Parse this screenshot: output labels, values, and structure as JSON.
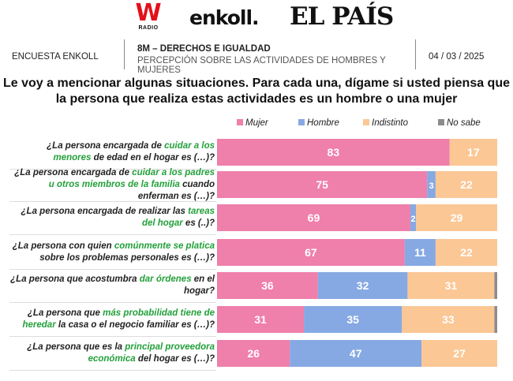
{
  "logos": {
    "w": "W",
    "radio": "RADIO",
    "enkoll": "enkoll.",
    "elpais": "EL PAÍS"
  },
  "header": {
    "survey": "ENCUESTA ENKOLL",
    "title": "8M – DERECHOS E IGUALDAD",
    "subtitle": "PERCEPCIÓN SOBRE LAS ACTIVIDADES DE HOMBRES Y MUJERES",
    "date": "04 / 03 / 2025"
  },
  "question": "Le voy a mencionar algunas situaciones. Para cada una, dígame si usted piensa que la persona que realiza estas actividades es un hombre o una mujer",
  "chart_data": {
    "type": "bar",
    "orientation": "horizontal",
    "stacked": true,
    "xlim": [
      0,
      100
    ],
    "legend_position": "top-right",
    "series": [
      {
        "name": "Mujer",
        "color": "#ef7fab",
        "values": [
          83,
          75,
          69,
          67,
          36,
          31,
          26
        ]
      },
      {
        "name": "Hombre",
        "color": "#86a9e3",
        "values": [
          0,
          3,
          2,
          11,
          32,
          35,
          47
        ]
      },
      {
        "name": "Indistinto",
        "color": "#fbc795",
        "values": [
          17,
          22,
          29,
          22,
          31,
          33,
          27
        ]
      },
      {
        "name": "No sabe",
        "color": "#8c8c8c",
        "values": [
          0,
          0,
          0,
          0,
          1,
          1,
          0
        ]
      }
    ],
    "categories": [
      [
        {
          "t": "¿La persona encargada de "
        },
        {
          "t": "cuidar a los menores",
          "g": true
        },
        {
          "t": " de edad en el hogar es (…)?"
        }
      ],
      [
        {
          "t": "¿La persona encargada de "
        },
        {
          "t": "cuidar a los padres u otros miembros de la familia",
          "g": true
        },
        {
          "t": " cuando enferman es (…)?"
        }
      ],
      [
        {
          "t": "¿La persona encargada de realizar las "
        },
        {
          "t": "tareas del hogar",
          "g": true
        },
        {
          "t": " es (..)?"
        }
      ],
      [
        {
          "t": "¿La persona con quien "
        },
        {
          "t": "comúnmente se platica",
          "g": true
        },
        {
          "t": " sobre los problemas personales es (…)?"
        }
      ],
      [
        {
          "t": "¿La persona que acostumbra "
        },
        {
          "t": "dar órdenes",
          "g": true
        },
        {
          "t": " en el hogar?"
        }
      ],
      [
        {
          "t": "¿La persona que "
        },
        {
          "t": "más probabilidad tiene de heredar",
          "g": true
        },
        {
          "t": " la casa o el negocio familiar es (…)?"
        }
      ],
      [
        {
          "t": "¿La persona que es la "
        },
        {
          "t": "principal proveedora económica",
          "g": true
        },
        {
          "t": " del hogar es (…)?"
        }
      ]
    ]
  }
}
